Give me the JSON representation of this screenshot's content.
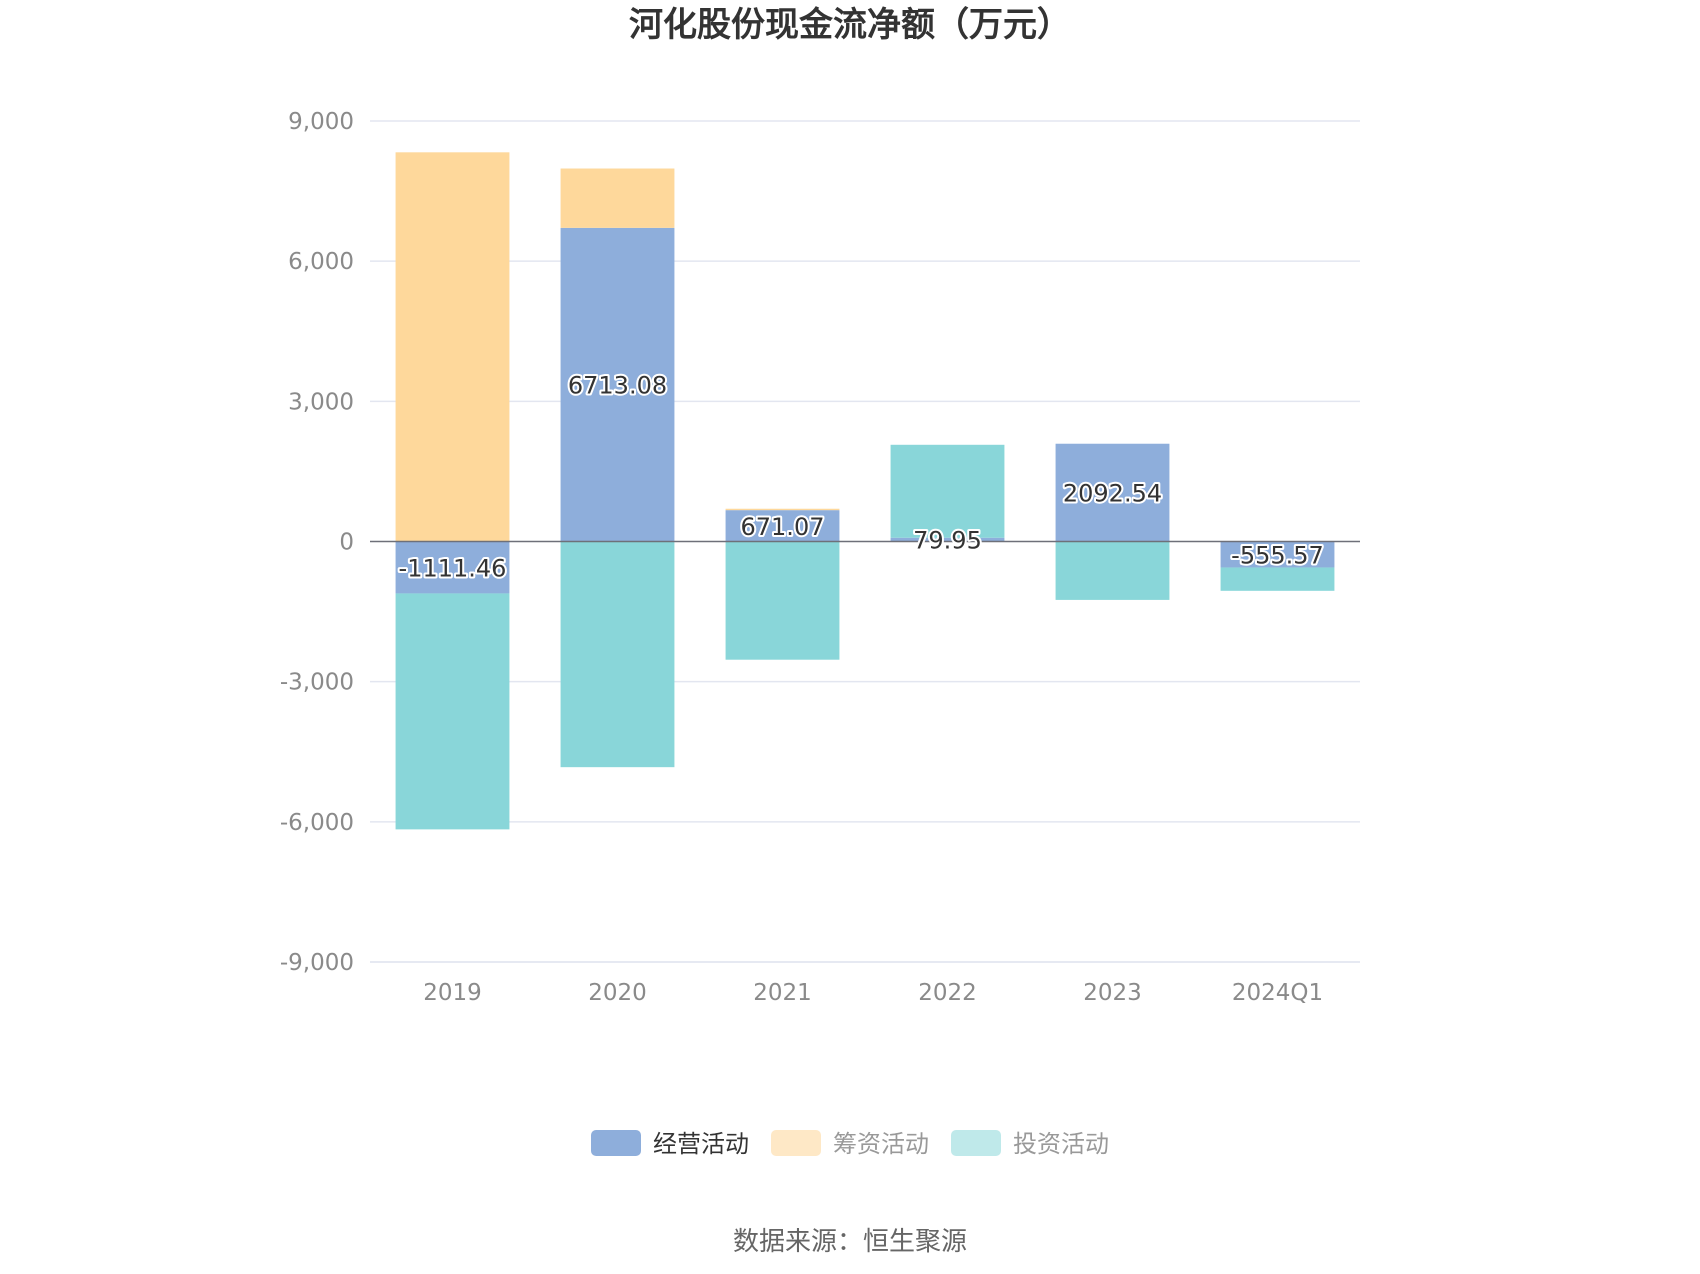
{
  "chart_data": {
    "type": "bar",
    "stacked": true,
    "title": "河化股份现金流净额（万元）",
    "categories": [
      "2019",
      "2020",
      "2021",
      "2022",
      "2023",
      "2024Q1"
    ],
    "ylim": [
      -9000,
      9000
    ],
    "yticks": [
      9000,
      6000,
      3000,
      0,
      -3000,
      -6000,
      -9000
    ],
    "ytick_labels": [
      "9,000",
      "6,000",
      "3,000",
      "0",
      "-3,000",
      "-6,000",
      "-9,000"
    ],
    "grid": true,
    "legend_position": "bottom",
    "series": [
      {
        "name": "经营活动",
        "color": "#8eaedb",
        "values": [
          -1111.46,
          6713.08,
          671.07,
          79.95,
          2092.54,
          -555.57
        ],
        "labels": [
          "-1111.46",
          "6713.08",
          "671.07",
          "79.95",
          "2092.54",
          "-555.57"
        ]
      },
      {
        "name": "筹资活动",
        "color": "#fed89b",
        "values": [
          8330,
          1270,
          30,
          0,
          0,
          0
        ]
      },
      {
        "name": "投资活动",
        "color": "#89d6d9",
        "values": [
          -5050,
          -4830,
          -2530,
          1990,
          -1250,
          -500
        ]
      }
    ],
    "legend_colors": [
      "#8eaedb",
      "#fee8c6",
      "#bfe9ea"
    ],
    "source": "数据来源：恒生聚源"
  }
}
